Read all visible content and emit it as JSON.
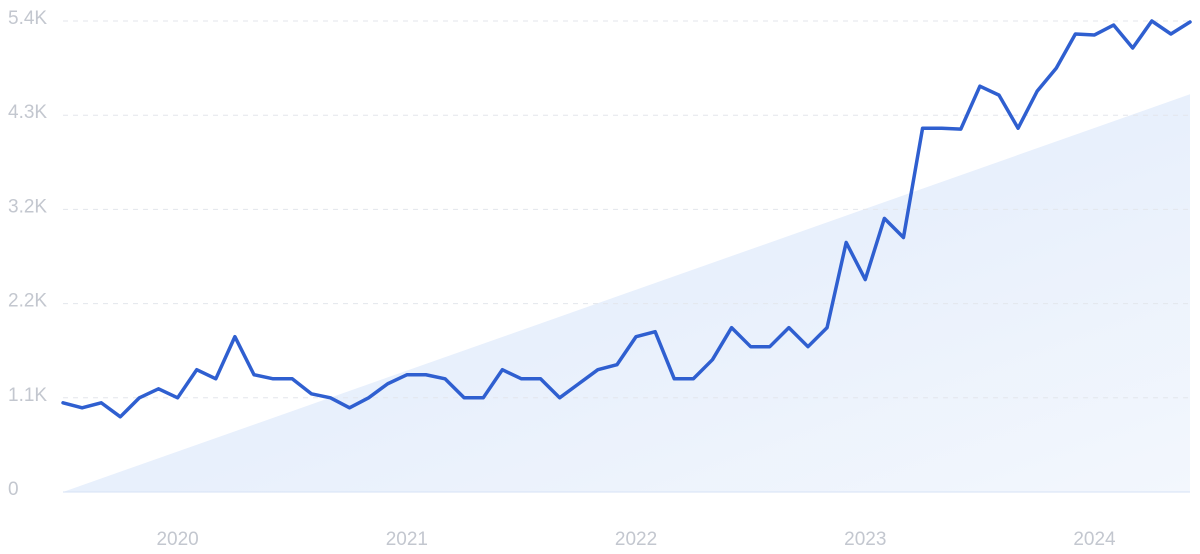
{
  "chart_data": {
    "type": "line",
    "categories": [
      null,
      null,
      null,
      null,
      null,
      null,
      "2020",
      null,
      null,
      null,
      null,
      null,
      null,
      null,
      null,
      null,
      null,
      null,
      "2021",
      null,
      null,
      null,
      null,
      null,
      null,
      null,
      null,
      null,
      null,
      null,
      "2022",
      null,
      null,
      null,
      null,
      null,
      null,
      null,
      null,
      null,
      null,
      null,
      "2023",
      null,
      null,
      null,
      null,
      null,
      null,
      null,
      null,
      null,
      null,
      null,
      "2024",
      null,
      null,
      null,
      null,
      null
    ],
    "series": [
      {
        "color": "#2f5fd0",
        "values": [
          1023,
          965,
          1023,
          862,
          1080,
          1183,
          1080,
          1402,
          1298,
          1781,
          1344,
          1298,
          1298,
          1126,
          1080,
          965,
          1080,
          1241,
          1344,
          1344,
          1298,
          1080,
          1080,
          1402,
          1298,
          1298,
          1080,
          1241,
          1402,
          1459,
          1781,
          1838,
          1298,
          1298,
          1517,
          1884,
          1666,
          1666,
          1884,
          1666,
          1884,
          2861,
          2436,
          3137,
          2918,
          4171,
          4171,
          4160,
          4653,
          4550,
          4171,
          4596,
          4860,
          5251,
          5240,
          5354,
          5090,
          5400,
          5251,
          5389
        ]
      }
    ],
    "trend": {
      "color": "#dfeafc",
      "values": [
        0,
        4560
      ]
    },
    "ylim": [
      0,
      5400
    ],
    "yticks": [
      0,
      {
        "value": 1080,
        "label": "1.1K"
      },
      {
        "value": 2160,
        "label": "2.2K"
      },
      {
        "value": 3240,
        "label": "3.2K"
      },
      {
        "value": 4320,
        "label": "4.3K"
      },
      {
        "value": 5400,
        "label": "5.4K"
      }
    ],
    "grid": true
  }
}
